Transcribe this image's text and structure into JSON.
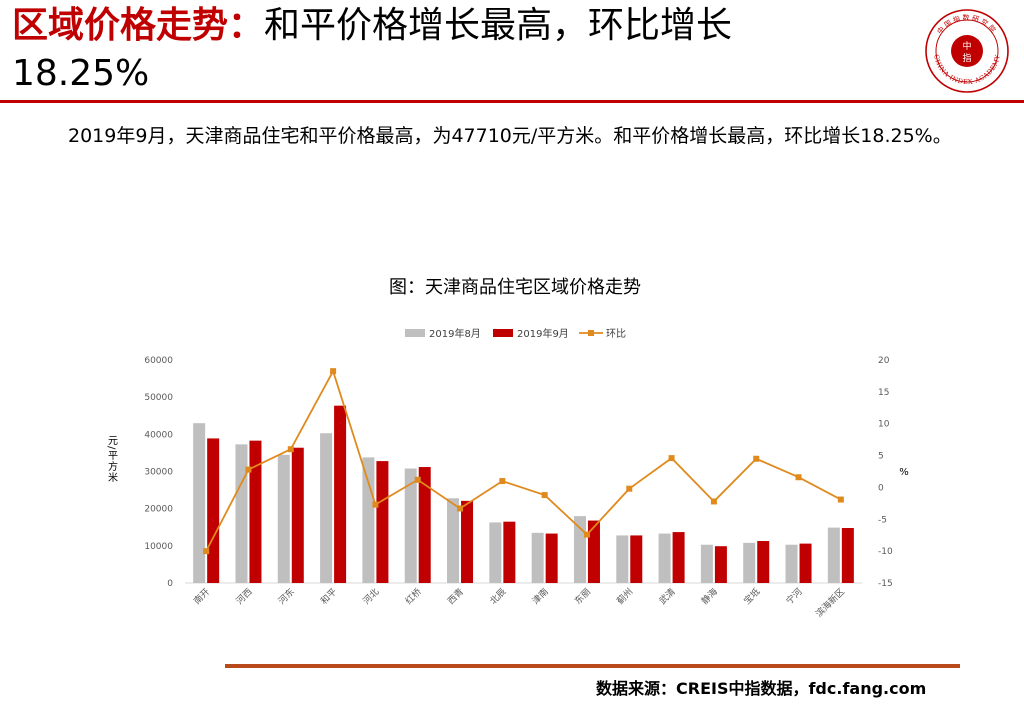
{
  "header": {
    "title_red": "区域价格走势：",
    "title_rest_line1": "和平价格增长最高，环比增长",
    "title_rest_line2": "18.25%"
  },
  "logo": {
    "ring_text": "CHINA INDEX ACADEMY",
    "top_text": "中国指数研究院",
    "center_top": "中",
    "center_bottom": "指"
  },
  "description": "2019年9月，天津商品住宅和平价格最高，为47710元/平方米。和平价格增长最高，环比增长18.25%。",
  "source": "数据来源：CREIS中指数据，fdc.fang.com",
  "colors": {
    "accent_red": "#c00000",
    "series_aug": "#bfbfbf",
    "series_sep": "#c00000",
    "series_mom": "#e08a1e",
    "source_line": "#b84a1c"
  },
  "chart_data": {
    "type": "bar",
    "title": "图：天津商品住宅区域价格走势",
    "ylabel": "元/平方米",
    "y2label": "%",
    "ylim": [
      0,
      60000
    ],
    "yticks": [
      0,
      10000,
      20000,
      30000,
      40000,
      50000,
      60000
    ],
    "y2lim": [
      -15,
      20
    ],
    "y2ticks": [
      -15,
      -10,
      -5,
      0,
      5,
      10,
      15,
      20
    ],
    "legend_position": "top",
    "grid": false,
    "categories": [
      "南开",
      "河西",
      "河东",
      "和平",
      "河北",
      "红桥",
      "西青",
      "北辰",
      "津南",
      "东丽",
      "蓟州",
      "武清",
      "静海",
      "宝坻",
      "宁河",
      "滨海新区"
    ],
    "series": [
      {
        "name": "2019年8月",
        "type": "bar",
        "axis": "left",
        "values": [
          43000,
          37300,
          34500,
          40300,
          33800,
          30800,
          22800,
          16300,
          13500,
          18000,
          12800,
          13300,
          10300,
          10800,
          10300,
          14900
        ]
      },
      {
        "name": "2019年9月",
        "type": "bar",
        "axis": "left",
        "values": [
          38900,
          38300,
          36400,
          47710,
          32800,
          31200,
          22100,
          16500,
          13300,
          16800,
          12800,
          13700,
          9900,
          11300,
          10600,
          14800
        ]
      },
      {
        "name": "环比",
        "type": "line",
        "axis": "right",
        "values": [
          -10.0,
          2.8,
          6.0,
          18.25,
          -2.7,
          1.2,
          -3.3,
          1.0,
          -1.2,
          -7.4,
          -0.2,
          4.6,
          -2.2,
          4.5,
          1.6,
          -1.9
        ]
      }
    ]
  }
}
